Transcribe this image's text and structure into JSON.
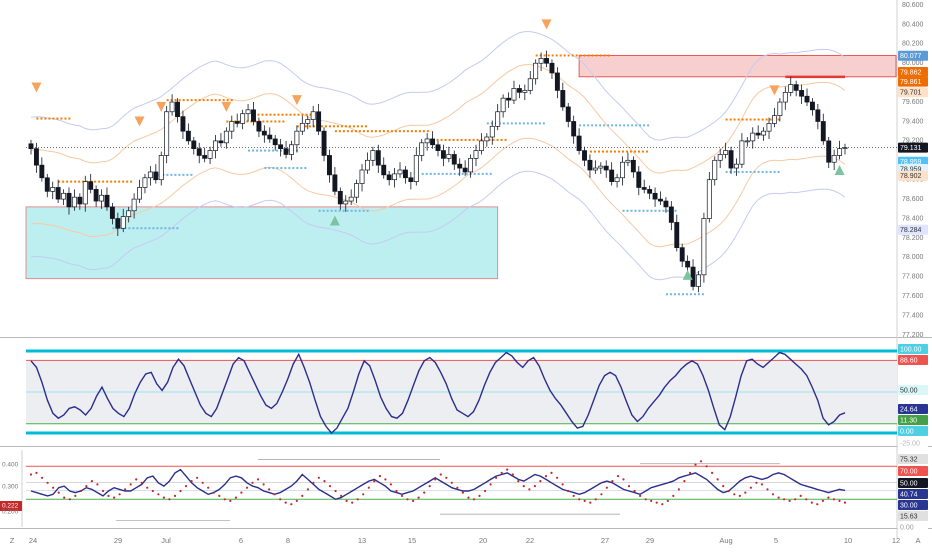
{
  "colors": {
    "up": "#ffffff",
    "down": "#131722",
    "wick": "#131722",
    "sell_marker": "#f7a35c",
    "buy_marker": "#7cc4a0",
    "resistance_dots": "#f57c00",
    "support_dots": "#6ab7e6",
    "supply_zone": "#f4b6b6",
    "demand_zone": "#b2ecef",
    "band_blue": "#c5cbf0",
    "band_orange": "#f7c9a2",
    "osc_line": "#2b2e8c",
    "osc_band": "#00bcd4",
    "osc_red": "#ef5350",
    "osc_green": "#4caf50",
    "dot_red": "#c62828"
  },
  "right_axis": {
    "labels": [
      "80.600",
      "80.400",
      "80.200",
      "80.000",
      "79.800",
      "79.600",
      "79.400",
      "79.200",
      "79.000",
      "78.800",
      "78.600",
      "78.400",
      "78.200",
      "78.000",
      "77.800",
      "77.600",
      "77.400",
      "77.200"
    ],
    "badges": [
      {
        "text": "80.077",
        "bg": "#5b9bd5",
        "fg": "#ffffff"
      },
      {
        "text": "79.862",
        "bg": "#ef6c00",
        "fg": "#ffffff"
      },
      {
        "text": "79.861",
        "bg": "#ef6c00",
        "fg": "#ffffff"
      },
      {
        "text": "79.701",
        "bg": "#fde2c9",
        "fg": "#333333"
      },
      {
        "text": "79.131",
        "bg": "#131722",
        "fg": "#ffffff"
      },
      {
        "text": "78.959",
        "bg": "#4fc3f7",
        "fg": "#ffffff"
      },
      {
        "text": "78.959",
        "bg": "#e0f2fb",
        "fg": "#333333"
      },
      {
        "text": "78.902",
        "bg": "#fde2c9",
        "fg": "#333333"
      },
      {
        "text": "78.284",
        "bg": "#dfe4ff",
        "fg": "#333333"
      }
    ]
  },
  "x_axis": {
    "labels": [
      "24",
      "29",
      "Jul",
      "6",
      "8",
      "13",
      "15",
      "20",
      "22",
      "27",
      "29",
      "Aug",
      "5",
      "10",
      "12"
    ],
    "corner_left": "Z",
    "corner_right": "A"
  },
  "osc1": {
    "badges": [
      {
        "text": "100.00",
        "bg": "#4dd0e1",
        "fg": "#ffffff"
      },
      {
        "text": "88.60",
        "bg": "#ef5350",
        "fg": "#ffffff"
      },
      {
        "text": "50.00",
        "bg": "#d9f6f8",
        "fg": "#333333"
      },
      {
        "text": "24.64",
        "bg": "#283593",
        "fg": "#ffffff"
      },
      {
        "text": "11.30",
        "bg": "#43a047",
        "fg": "#ffffff"
      },
      {
        "text": "0.00",
        "bg": "#4dd0e1",
        "fg": "#ffffff"
      },
      {
        "text": "-25.00",
        "bg": "#ffffff",
        "fg": "#b5b5b5"
      }
    ]
  },
  "osc2": {
    "left_labels": [
      "0.400",
      "0.300",
      "0.222",
      "0.200"
    ],
    "badges": [
      {
        "text": "75.32",
        "bg": "#e0e0e0",
        "fg": "#333333"
      },
      {
        "text": "70.00",
        "bg": "#ef5350",
        "fg": "#ffffff"
      },
      {
        "text": "50.00",
        "bg": "#131722",
        "fg": "#ffffff"
      },
      {
        "text": "40.74",
        "bg": "#283593",
        "fg": "#ffffff"
      },
      {
        "text": "30.00",
        "bg": "#283593",
        "fg": "#ffffff"
      },
      {
        "text": "15.63",
        "bg": "#e0e0e0",
        "fg": "#333333"
      },
      {
        "text": "0.00",
        "bg": "#ffffff",
        "fg": "#999999"
      }
    ]
  },
  "chart_data": [
    {
      "type": "candlestick",
      "instrument_scale": [
        77.2,
        80.6
      ],
      "x_labels": [
        "24",
        "29",
        "Jul",
        "6",
        "8",
        "13",
        "15",
        "20",
        "22",
        "27",
        "29",
        "Aug",
        "5",
        "10",
        "12"
      ],
      "last_price": 79.131,
      "supply_zone": [
        79.86,
        80.08
      ],
      "demand_zone": [
        77.78,
        78.52
      ],
      "key_levels": [
        80.077,
        79.862,
        79.861,
        79.701,
        79.131,
        78.959,
        78.902,
        78.284
      ],
      "close": [
        79.12,
        78.95,
        78.82,
        78.68,
        78.72,
        78.6,
        78.66,
        78.52,
        78.62,
        78.55,
        78.78,
        78.7,
        78.58,
        78.64,
        78.52,
        78.4,
        78.3,
        78.42,
        78.48,
        78.6,
        78.72,
        78.82,
        78.88,
        78.8,
        79.05,
        79.5,
        79.6,
        79.45,
        79.3,
        79.2,
        79.12,
        79.05,
        79.02,
        79.1,
        79.2,
        79.18,
        79.3,
        79.4,
        79.38,
        79.48,
        79.52,
        79.4,
        79.3,
        79.26,
        79.22,
        79.16,
        79.12,
        79.06,
        79.16,
        79.3,
        79.38,
        79.42,
        79.5,
        79.3,
        79.05,
        78.85,
        78.68,
        78.55,
        78.58,
        78.62,
        78.76,
        78.9,
        79.0,
        79.1,
        78.95,
        78.85,
        78.8,
        78.86,
        78.9,
        78.82,
        78.78,
        79.05,
        79.18,
        79.22,
        79.16,
        79.1,
        79.02,
        79.06,
        78.96,
        78.92,
        78.88,
        79.02,
        79.1,
        79.2,
        79.24,
        79.35,
        79.5,
        79.64,
        79.62,
        79.74,
        79.7,
        79.72,
        79.84,
        80.0,
        80.05,
        80.0,
        79.9,
        79.72,
        79.55,
        79.4,
        79.25,
        79.1,
        79.0,
        78.9,
        78.92,
        78.94,
        78.9,
        78.78,
        78.82,
        78.98,
        79.0,
        78.88,
        78.72,
        78.7,
        78.66,
        78.6,
        78.58,
        78.52,
        78.36,
        78.1,
        77.96,
        77.9,
        77.7,
        77.82,
        78.4,
        78.8,
        79.0,
        79.06,
        79.1,
        78.92,
        78.96,
        79.2,
        79.2,
        79.28,
        79.26,
        79.3,
        79.38,
        79.46,
        79.6,
        79.7,
        79.78,
        79.72,
        79.66,
        79.6,
        79.52,
        79.4,
        79.2,
        78.98,
        79.05,
        79.12,
        79.13
      ]
    },
    {
      "type": "line",
      "name": "",
      "ylim": [
        -25,
        100
      ],
      "levels": [
        100,
        88.6,
        50,
        11.3,
        0
      ],
      "last_value": 24.64,
      "values": [
        88,
        80,
        62,
        40,
        24,
        18,
        22,
        30,
        32,
        28,
        22,
        30,
        45,
        56,
        42,
        30,
        24,
        20,
        30,
        48,
        62,
        72,
        74,
        60,
        52,
        62,
        80,
        90,
        82,
        66,
        50,
        34,
        24,
        20,
        30,
        48,
        66,
        84,
        92,
        88,
        74,
        60,
        46,
        34,
        30,
        36,
        50,
        66,
        84,
        96,
        80,
        62,
        40,
        20,
        8,
        0,
        6,
        18,
        30,
        50,
        72,
        88,
        82,
        64,
        44,
        30,
        20,
        18,
        24,
        40,
        58,
        76,
        88,
        92,
        86,
        74,
        60,
        42,
        28,
        24,
        20,
        26,
        40,
        58,
        74,
        86,
        92,
        98,
        94,
        86,
        80,
        88,
        92,
        82,
        66,
        52,
        42,
        34,
        24,
        14,
        6,
        8,
        22,
        40,
        58,
        70,
        74,
        70,
        56,
        38,
        22,
        14,
        20,
        30,
        38,
        46,
        56,
        64,
        70,
        78,
        84,
        88,
        84,
        70,
        52,
        30,
        10,
        4,
        20,
        44,
        70,
        88,
        90,
        84,
        80,
        86,
        92,
        98,
        96,
        90,
        84,
        78,
        70,
        56,
        40,
        18,
        10,
        14,
        22,
        24.64
      ]
    },
    {
      "type": "line",
      "ylim": [
        0,
        80
      ],
      "levels": [
        75.32,
        70,
        50,
        40.74,
        30,
        15.63,
        0
      ],
      "series": [
        {
          "values": [
            40,
            38,
            36,
            34,
            36,
            44,
            46,
            40,
            38,
            40,
            44,
            42,
            38,
            34,
            40,
            44,
            42,
            40,
            40,
            44,
            48,
            56,
            58,
            50,
            46,
            52,
            62,
            66,
            58,
            50,
            44,
            40,
            36,
            38,
            42,
            48,
            56,
            58,
            56,
            50,
            46,
            44,
            40,
            38,
            36,
            38,
            42,
            46,
            52,
            60,
            54,
            48,
            42,
            38,
            34,
            30,
            32,
            36,
            40,
            44,
            48,
            52,
            54,
            50,
            46,
            40,
            38,
            36,
            38,
            40,
            44,
            48,
            52,
            56,
            52,
            48,
            44,
            42,
            40,
            40,
            42,
            46,
            50,
            54,
            58,
            60,
            62,
            58,
            54,
            52,
            56,
            60,
            58,
            54,
            50,
            46,
            42,
            40,
            38,
            36,
            38,
            42,
            46,
            50,
            52,
            50,
            46,
            42,
            40,
            38,
            36,
            40,
            44,
            46,
            48,
            50,
            52,
            56,
            58,
            60,
            62,
            58,
            54,
            48,
            42,
            38,
            40,
            46,
            52,
            56,
            58,
            56,
            54,
            56,
            60,
            62,
            60,
            56,
            52,
            48,
            46,
            44,
            42,
            40,
            38,
            40,
            42,
            40.74
          ]
        },
        {
          "values": [
            60,
            62,
            56,
            50,
            44,
            38,
            32,
            30,
            34,
            40,
            46,
            52,
            48,
            40,
            34,
            32,
            36,
            42,
            48,
            54,
            50,
            44,
            40,
            36,
            32,
            30,
            34,
            40,
            46,
            52,
            56,
            50,
            44,
            38,
            34,
            30,
            28,
            32,
            38,
            44,
            50,
            54,
            48,
            42,
            36,
            30,
            26,
            24,
            28,
            34,
            42,
            50,
            56,
            52,
            46,
            40,
            34,
            28,
            26,
            30,
            36,
            44,
            52,
            58,
            54,
            48,
            40,
            34,
            30,
            28,
            32,
            38,
            46,
            54,
            60,
            56,
            50,
            44,
            38,
            32,
            30,
            34,
            40,
            48,
            56,
            62,
            66,
            60,
            52,
            46,
            42,
            46,
            52,
            58,
            62,
            56,
            48,
            40,
            34,
            30,
            28,
            26,
            30,
            36,
            44,
            52,
            58,
            54,
            46,
            40,
            34,
            30,
            28,
            26,
            24,
            28,
            34,
            42,
            52,
            62,
            72,
            76,
            70,
            62,
            54,
            46,
            40,
            36,
            34,
            38,
            44,
            50,
            48,
            42,
            36,
            32,
            30,
            28,
            30,
            34,
            30,
            26,
            24,
            28,
            32,
            30,
            28,
            26
          ]
        }
      ]
    }
  ]
}
